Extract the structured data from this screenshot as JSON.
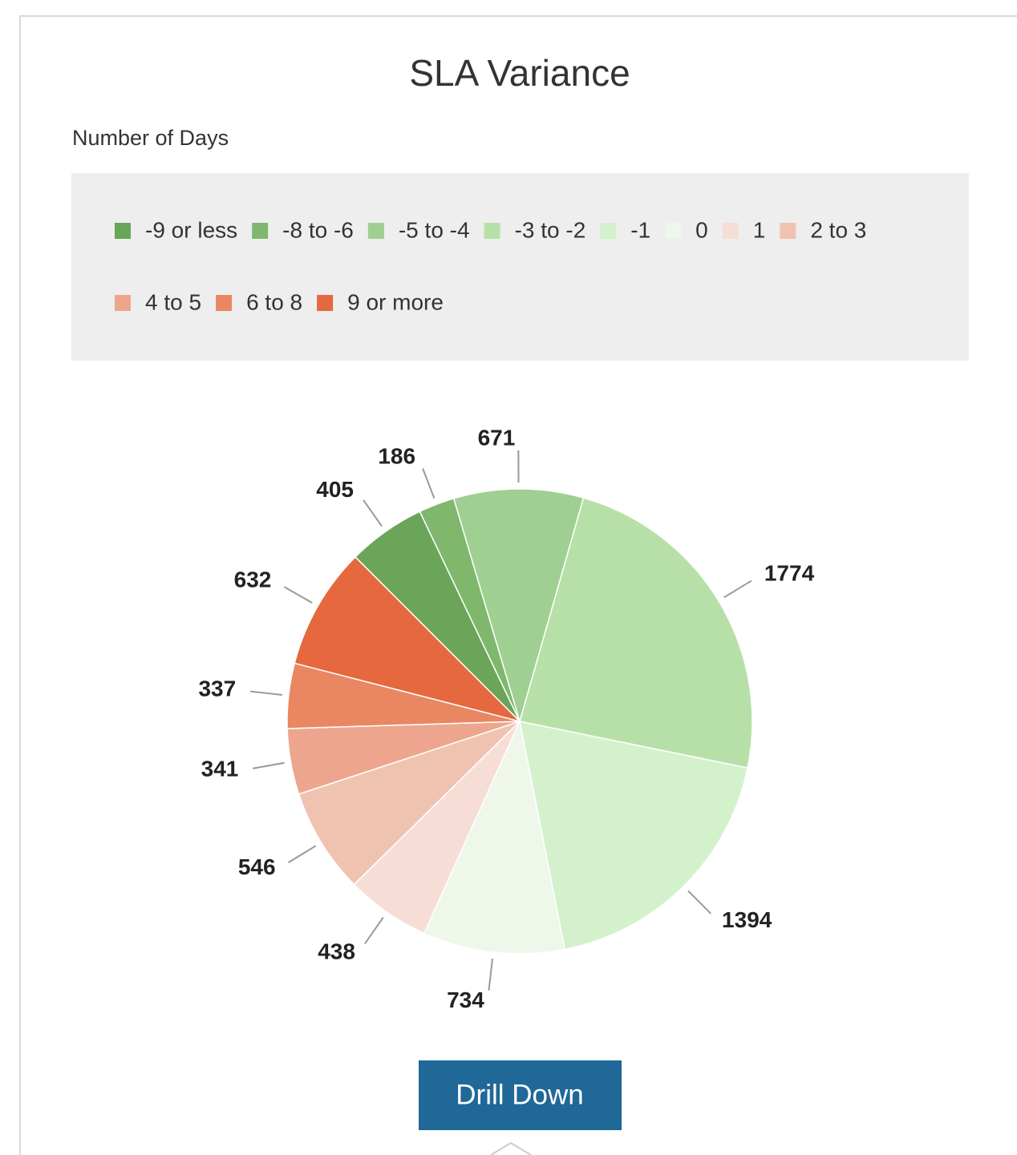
{
  "chart_data": {
    "type": "pie",
    "title": "SLA Variance",
    "subtitle": "Number of Days",
    "categories": [
      "-9 or less",
      "-8 to -6",
      "-5 to -4",
      "-3 to -2",
      "-1",
      "0",
      "1",
      "2 to 3",
      "4 to 5",
      "6 to 8",
      "9 or more"
    ],
    "values": [
      405,
      186,
      671,
      1774,
      1394,
      734,
      438,
      546,
      341,
      337,
      632
    ],
    "colors": [
      "#6aa55a",
      "#7fb86d",
      "#9fcf91",
      "#b7e0a9",
      "#d3f2cb",
      "#eef7ea",
      "#f6ded7",
      "#f0c3b1",
      "#eda68d",
      "#e98762",
      "#e5683e"
    ],
    "legend": "top"
  },
  "button": {
    "label": "Drill Down"
  }
}
